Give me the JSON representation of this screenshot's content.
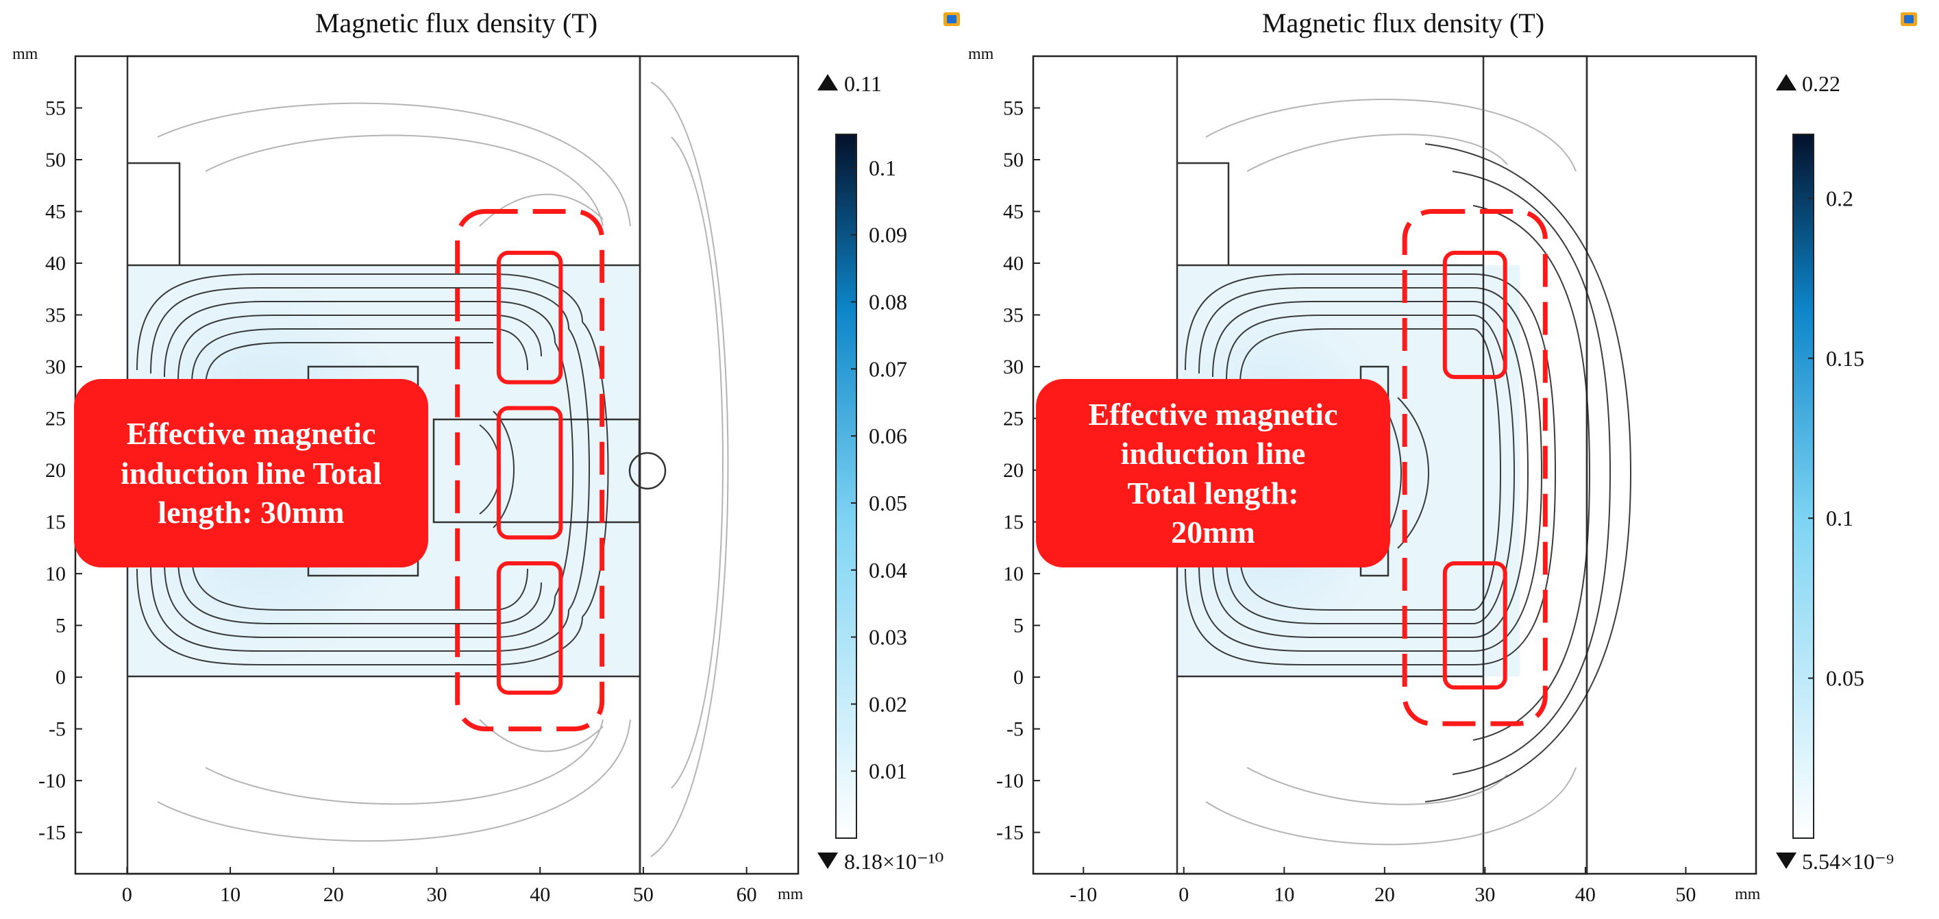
{
  "colors": {
    "accent": "#ff1a1a",
    "colormap_low": "#ffffff",
    "colormap_mid": "#1fb8ea",
    "colormap_high": "#04112b"
  },
  "chart_data": [
    {
      "type": "heatmap",
      "title": "Magnetic flux density (T)",
      "xunit": "mm",
      "yunit": "mm",
      "xlim": [
        -5,
        65
      ],
      "ylim": [
        -19,
        60
      ],
      "xticks": [
        0,
        10,
        20,
        30,
        40,
        50,
        60
      ],
      "yticks": [
        -15,
        -10,
        -5,
        0,
        5,
        10,
        15,
        20,
        25,
        30,
        35,
        40,
        45,
        50,
        55
      ],
      "colorbar": {
        "min": 0,
        "max": 0.105,
        "ticks": [
          0.01,
          0.02,
          0.03,
          0.04,
          0.05,
          0.06,
          0.07,
          0.08,
          0.09,
          0.1
        ],
        "max_label": "0.11",
        "min_label": "8.18×10⁻¹⁰"
      },
      "annotation": "Effective magnetic induction line Total length: 30mm",
      "regions_mm": {
        "dashed": [
          32,
          -5,
          46,
          45
        ],
        "solid": [
          [
            36,
            28.5,
            42,
            41
          ],
          [
            36,
            13.5,
            42,
            26
          ],
          [
            36,
            -1.5,
            42,
            11
          ]
        ]
      }
    },
    {
      "type": "heatmap",
      "title": "Magnetic flux density (T)",
      "xunit": "mm",
      "yunit": "mm",
      "xlim": [
        -15,
        57
      ],
      "ylim": [
        -19,
        60
      ],
      "xticks": [
        -10,
        0,
        10,
        20,
        30,
        40,
        50
      ],
      "yticks": [
        -15,
        -10,
        -5,
        0,
        5,
        10,
        15,
        20,
        25,
        30,
        35,
        40,
        45,
        50,
        55
      ],
      "colorbar": {
        "min": 0,
        "max": 0.22,
        "ticks": [
          0.05,
          0.1,
          0.15,
          0.2
        ],
        "max_label": "0.22",
        "min_label": "5.54×10⁻⁹"
      },
      "annotation": "Effective magnetic induction line Total length: 20mm",
      "regions_mm": {
        "dashed": [
          22,
          -4.5,
          36,
          45
        ],
        "solid": [
          [
            26,
            29,
            32,
            41
          ],
          [
            26,
            -1,
            32,
            11
          ]
        ]
      }
    }
  ],
  "panels": [
    {
      "callout": {
        "line1": "Effective magnetic",
        "line2": "induction line Total",
        "line3": "length: 30mm"
      }
    },
    {
      "callout": {
        "line1": "Effective magnetic",
        "line2": "induction line",
        "line3": "Total length:",
        "line4": "20mm"
      }
    }
  ]
}
